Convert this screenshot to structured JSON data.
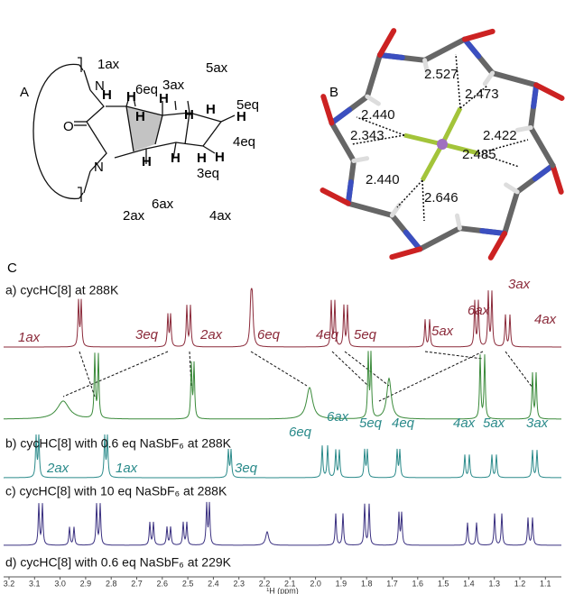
{
  "panel_a": {
    "label": "A",
    "proton_labels": [
      "1ax",
      "5ax",
      "3ax",
      "6eq",
      "5eq",
      "4eq",
      "3eq",
      "2ax",
      "6ax",
      "4ax"
    ],
    "atom_labels": [
      "O",
      "N",
      "N"
    ],
    "hydrogen_labels": [
      "H",
      "H",
      "H",
      "H",
      "H",
      "H",
      "H",
      "H",
      "H",
      "H",
      "H"
    ]
  },
  "panel_b": {
    "label": "B",
    "distances": [
      "2.527",
      "2.473",
      "2.440",
      "2.343",
      "2.422",
      "2.485",
      "2.440",
      "2.646"
    ]
  },
  "panel_c": {
    "label": "C",
    "spectra": [
      {
        "label": "a) cycHC[8] at 288K",
        "peaks": [
          "1ax",
          "3eq",
          "2ax",
          "6eq",
          "4eq",
          "5eq",
          "5ax",
          "6ax",
          "3ax",
          "4ax"
        ]
      },
      {
        "label": "b) cycHC[8] with 0.6 eq NaSbF₆ at 288K"
      },
      {
        "label": "c) cycHC[8] with 10 eq NaSbF₆ at 288K",
        "peaks": [
          "2ax",
          "1ax",
          "3eq",
          "6eq",
          "6ax",
          "5eq",
          "4eq",
          "4ax",
          "5ax",
          "3ax"
        ]
      },
      {
        "label": "d) cycHC[8] with 0.6 eq NaSbF₆ at 229K"
      }
    ],
    "axis_ticks": [
      "3.2",
      "3.1",
      "3.0",
      "2.9",
      "2.8",
      "2.7",
      "2.6",
      "2.5",
      "2.4",
      "2.3",
      "2.2",
      "2.1",
      "2.0",
      "1.9",
      "1.8",
      "1.7",
      "1.6",
      "1.5",
      "1.4",
      "1.3",
      "1.2",
      "1.1"
    ],
    "axis_label": "¹H (ppm)"
  }
}
